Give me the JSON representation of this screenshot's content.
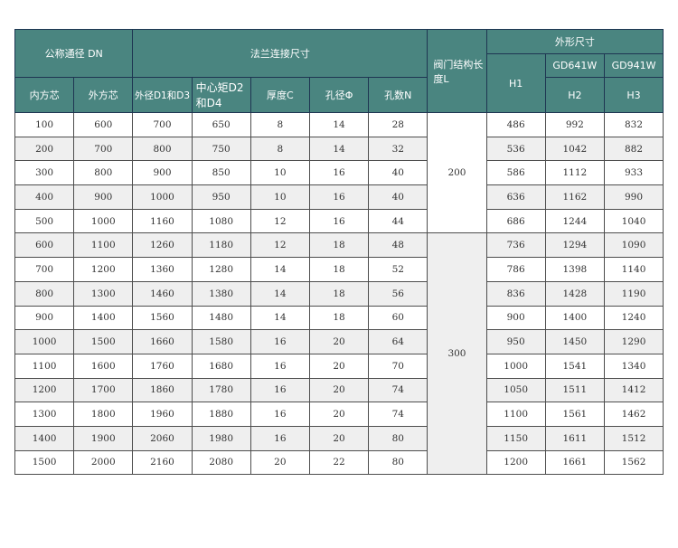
{
  "headers": {
    "nominal": "公称通径 DN",
    "flange": "法兰连接尺寸",
    "length": "阀门结构长度L",
    "outline": "外形尺寸",
    "gd641": "GD641W",
    "gd941": "GD941W",
    "h1": "H1",
    "h2": "H2",
    "h3": "H3",
    "inner": "内方芯",
    "outer": "外方芯",
    "d1": "外径D1和D3",
    "d2": "中心矩D2和D4",
    "c": "厚度C",
    "phi": "孔径Φ",
    "n": "孔数N"
  },
  "length_values": [
    "200",
    "300"
  ],
  "rows": [
    [
      "100",
      "600",
      "700",
      "650",
      "8",
      "14",
      "28",
      "486",
      "992",
      "832"
    ],
    [
      "200",
      "700",
      "800",
      "750",
      "8",
      "14",
      "32",
      "536",
      "1042",
      "882"
    ],
    [
      "300",
      "800",
      "900",
      "850",
      "10",
      "16",
      "40",
      "586",
      "1112",
      "933"
    ],
    [
      "400",
      "900",
      "1000",
      "950",
      "10",
      "16",
      "40",
      "636",
      "1162",
      "990"
    ],
    [
      "500",
      "1000",
      "1160",
      "1080",
      "12",
      "16",
      "44",
      "686",
      "1244",
      "1040"
    ],
    [
      "600",
      "1100",
      "1260",
      "1180",
      "12",
      "18",
      "48",
      "736",
      "1294",
      "1090"
    ],
    [
      "700",
      "1200",
      "1360",
      "1280",
      "14",
      "18",
      "52",
      "786",
      "1398",
      "1140"
    ],
    [
      "800",
      "1300",
      "1460",
      "1380",
      "14",
      "18",
      "56",
      "836",
      "1428",
      "1190"
    ],
    [
      "900",
      "1400",
      "1560",
      "1480",
      "14",
      "18",
      "60",
      "900",
      "1400",
      "1240"
    ],
    [
      "1000",
      "1500",
      "1660",
      "1580",
      "16",
      "20",
      "64",
      "950",
      "1450",
      "1290"
    ],
    [
      "1100",
      "1600",
      "1760",
      "1680",
      "16",
      "20",
      "70",
      "1000",
      "1541",
      "1340"
    ],
    [
      "1200",
      "1700",
      "1860",
      "1780",
      "16",
      "20",
      "74",
      "1050",
      "1511",
      "1412"
    ],
    [
      "1300",
      "1800",
      "1960",
      "1880",
      "16",
      "20",
      "74",
      "1100",
      "1561",
      "1462"
    ],
    [
      "1400",
      "1900",
      "2060",
      "1980",
      "16",
      "20",
      "80",
      "1150",
      "1611",
      "1512"
    ],
    [
      "1500",
      "2000",
      "2160",
      "2080",
      "20",
      "22",
      "80",
      "1200",
      "1661",
      "1562"
    ]
  ]
}
